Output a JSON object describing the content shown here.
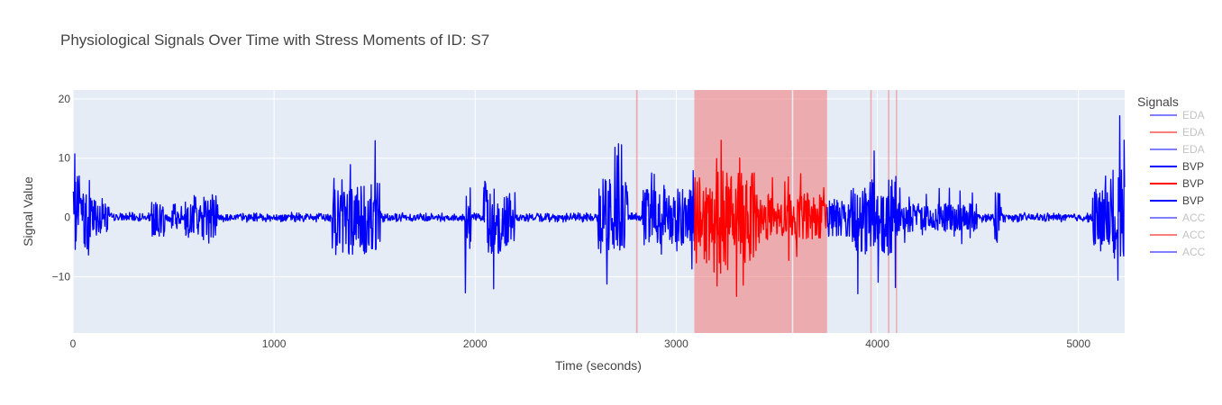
{
  "chart_data": {
    "type": "line",
    "title": "Physiological Signals Over Time with Stress Moments of ID: S7",
    "xlabel": "Time (seconds)",
    "ylabel": "Signal Value",
    "xlim": [
      0,
      5230
    ],
    "ylim": [
      -19.5,
      21.5
    ],
    "x_ticks": [
      0,
      1000,
      2000,
      3000,
      4000,
      5000
    ],
    "y_ticks": [
      -10,
      0,
      10,
      20
    ],
    "y_tick_labels": [
      "−10",
      "0",
      "10",
      "20"
    ],
    "grid": true,
    "plot_background": "#e5ecf6",
    "legend": {
      "title": "Signals",
      "placement": "right",
      "entries": [
        {
          "name": "EDA",
          "color": "#0000ff",
          "faded": true
        },
        {
          "name": "EDA",
          "color": "#ff0000",
          "faded": true
        },
        {
          "name": "EDA",
          "color": "#0000ff",
          "faded": true
        },
        {
          "name": "BVP",
          "color": "#0000ff",
          "faded": false
        },
        {
          "name": "BVP",
          "color": "#ff0000",
          "faded": false
        },
        {
          "name": "BVP",
          "color": "#0000ff",
          "faded": false
        },
        {
          "name": "ACC",
          "color": "#0000ff",
          "faded": true
        },
        {
          "name": "ACC",
          "color": "#ff0000",
          "faded": true
        },
        {
          "name": "ACC",
          "color": "#0000ff",
          "faded": true
        }
      ]
    },
    "stress_regions": [
      {
        "start": 2800,
        "end": 2808
      },
      {
        "start": 3090,
        "end": 3575
      },
      {
        "start": 3582,
        "end": 3750
      },
      {
        "start": 3965,
        "end": 3972
      },
      {
        "start": 4053,
        "end": 4060
      },
      {
        "start": 4092,
        "end": 4098
      }
    ],
    "series": [
      {
        "name": "BVP",
        "color": "#0000ff",
        "segment": [
          0,
          3090
        ]
      },
      {
        "name": "BVP",
        "color": "#ff0000",
        "segment": [
          3090,
          3750
        ]
      },
      {
        "name": "BVP",
        "color": "#0000ff",
        "segment": [
          3750,
          5230
        ]
      }
    ],
    "bursts": [
      {
        "start": 0,
        "end": 40,
        "amp": 17,
        "mean": 5
      },
      {
        "start": 40,
        "end": 90,
        "amp": 14,
        "mean": 4
      },
      {
        "start": 90,
        "end": 180,
        "amp": 5,
        "mean": 2
      },
      {
        "start": 390,
        "end": 460,
        "amp": 4,
        "mean": 2
      },
      {
        "start": 490,
        "end": 540,
        "amp": 4,
        "mean": 1.5
      },
      {
        "start": 555,
        "end": 720,
        "amp": 5,
        "mean": 2.5
      },
      {
        "start": 1285,
        "end": 1440,
        "amp": 10,
        "mean": 4
      },
      {
        "start": 1440,
        "end": 1530,
        "amp": 13,
        "mean": 4
      },
      {
        "start": 1950,
        "end": 1980,
        "amp": 14,
        "mean": 4
      },
      {
        "start": 2040,
        "end": 2130,
        "amp": 13,
        "mean": 4
      },
      {
        "start": 2130,
        "end": 2200,
        "amp": 10,
        "mean": 3
      },
      {
        "start": 2610,
        "end": 2700,
        "amp": 14,
        "mean": 4
      },
      {
        "start": 2700,
        "end": 2760,
        "amp": 13,
        "mean": 4
      },
      {
        "start": 2830,
        "end": 3090,
        "amp": 9,
        "mean": 3
      },
      {
        "start": 3090,
        "end": 3400,
        "amp": 16,
        "mean": 5
      },
      {
        "start": 3400,
        "end": 3750,
        "amp": 8,
        "mean": 2.5
      },
      {
        "start": 3750,
        "end": 3880,
        "amp": 6,
        "mean": 2
      },
      {
        "start": 3880,
        "end": 4100,
        "amp": 14,
        "mean": 4
      },
      {
        "start": 4100,
        "end": 4500,
        "amp": 5,
        "mean": 1.5
      },
      {
        "start": 4580,
        "end": 4620,
        "amp": 10,
        "mean": 3
      },
      {
        "start": 5070,
        "end": 5160,
        "amp": 10,
        "mean": 3
      },
      {
        "start": 5160,
        "end": 5230,
        "amp": 19,
        "mean": 5
      }
    ],
    "baseline_amplitude": 0.6
  }
}
